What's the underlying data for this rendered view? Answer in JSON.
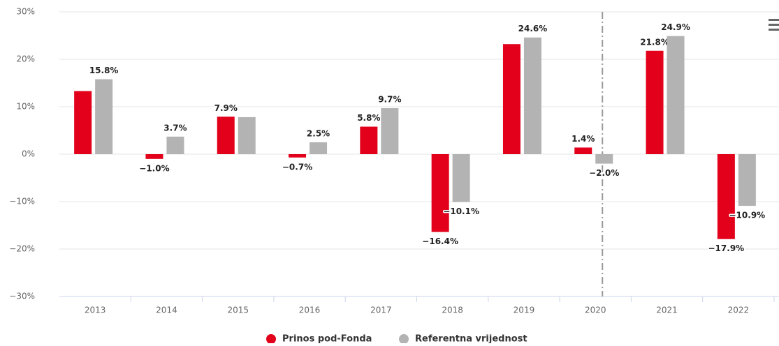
{
  "chart_data": {
    "type": "bar",
    "categories": [
      "2013",
      "2014",
      "2015",
      "2016",
      "2017",
      "2018",
      "2019",
      "2020",
      "2021",
      "2022"
    ],
    "series": [
      {
        "name": "Prinos pod-Fonda",
        "color": "#e2001a",
        "values": [
          13.3,
          -1.0,
          7.9,
          -0.7,
          5.8,
          -16.4,
          23.2,
          1.4,
          21.8,
          -17.9
        ],
        "value_labels": [
          null,
          "−1.0%",
          "7.9%",
          "−0.7%",
          "5.8%",
          "−16.4%",
          null,
          "1.4%",
          "21.8%",
          "−17.9%"
        ]
      },
      {
        "name": "Referentna vrijednost",
        "color": "#b3b3b3",
        "values": [
          15.8,
          3.7,
          7.8,
          2.5,
          9.7,
          -10.1,
          24.6,
          -2.0,
          24.9,
          -10.9
        ],
        "value_labels": [
          "15.8%",
          "3.7%",
          null,
          "2.5%",
          "9.7%",
          "−10.1%",
          "24.6%",
          "−2.0%",
          "24.9%",
          "−10.9%"
        ]
      }
    ],
    "ylim": [
      -30,
      30
    ],
    "yticks": [
      {
        "value": -30,
        "label": "−30%"
      },
      {
        "value": -20,
        "label": "−20%"
      },
      {
        "value": -10,
        "label": "−10%"
      },
      {
        "value": 0,
        "label": "0%"
      },
      {
        "value": 10,
        "label": "10%"
      },
      {
        "value": 20,
        "label": "20%"
      },
      {
        "value": 30,
        "label": "30%"
      }
    ],
    "grid": true
  }
}
